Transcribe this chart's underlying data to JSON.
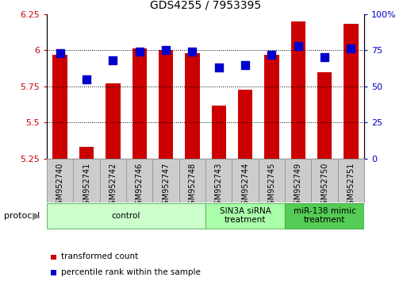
{
  "title": "GDS4255 / 7953395",
  "categories": [
    "GSM952740",
    "GSM952741",
    "GSM952742",
    "GSM952746",
    "GSM952747",
    "GSM952748",
    "GSM952743",
    "GSM952744",
    "GSM952745",
    "GSM952749",
    "GSM952750",
    "GSM952751"
  ],
  "red_values": [
    5.97,
    5.33,
    5.77,
    6.01,
    6.0,
    5.98,
    5.62,
    5.73,
    5.97,
    6.2,
    5.85,
    6.18
  ],
  "blue_values": [
    73,
    55,
    68,
    74,
    75,
    74,
    63,
    65,
    72,
    78,
    70,
    76
  ],
  "ylim_left": [
    5.25,
    6.25
  ],
  "ylim_right": [
    0,
    100
  ],
  "yticks_left": [
    5.25,
    5.5,
    5.75,
    6.0,
    6.25
  ],
  "yticks_right": [
    0,
    25,
    50,
    75,
    100
  ],
  "ytick_labels_left": [
    "5.25",
    "5.5",
    "5.75",
    "6",
    "6.25"
  ],
  "ytick_labels_right": [
    "0",
    "25",
    "50",
    "75",
    "100%"
  ],
  "bar_color": "#cc0000",
  "dot_color": "#0000cc",
  "bar_bottom": 5.25,
  "groups": [
    {
      "label": "control",
      "start": 0,
      "end": 6,
      "color": "#ccffcc",
      "edge_color": "#66bb66"
    },
    {
      "label": "SIN3A siRNA\ntreatment",
      "start": 6,
      "end": 9,
      "color": "#aaffaa",
      "edge_color": "#66bb66"
    },
    {
      "label": "miR-138 mimic\ntreatment",
      "start": 9,
      "end": 12,
      "color": "#55cc55",
      "edge_color": "#44aa44"
    }
  ],
  "legend_items": [
    {
      "label": "transformed count",
      "color": "#cc0000"
    },
    {
      "label": "percentile rank within the sample",
      "color": "#0000cc"
    }
  ],
  "protocol_label": "protocol",
  "grid_color": "#000000",
  "tick_color_left": "#cc0000",
  "tick_color_right": "#0000cc",
  "bar_width": 0.55,
  "dot_size": 45,
  "label_box_color": "#cccccc",
  "label_box_edge": "#999999"
}
